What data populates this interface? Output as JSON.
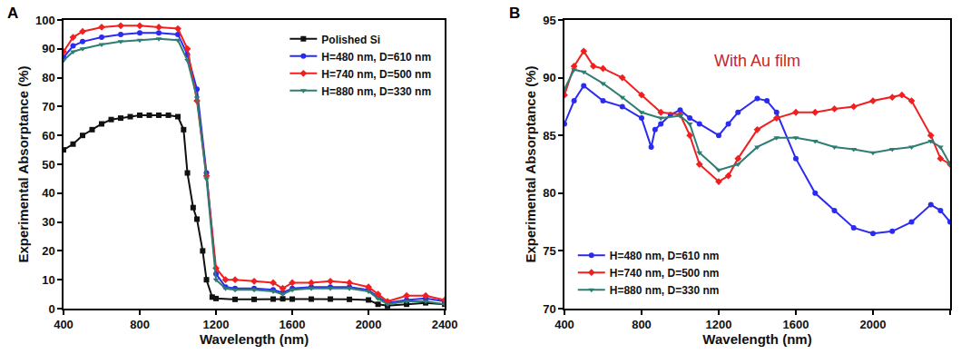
{
  "chart_data": [
    {
      "type": "line",
      "title": "A",
      "x_label": "Wavelength (nm)",
      "y_label": "Experimental Absorptance (%)",
      "xlim": [
        400,
        2400
      ],
      "xticks": [
        400,
        800,
        1200,
        1600,
        2000,
        2400
      ],
      "ylim": [
        0,
        100
      ],
      "yticks": [
        0,
        10,
        20,
        30,
        40,
        50,
        60,
        70,
        80,
        90,
        100
      ],
      "grid": false,
      "legend": "upper right",
      "series": [
        {
          "name": "Polished Si",
          "color": "#111111",
          "marker": "square",
          "x": [
            400,
            450,
            500,
            550,
            600,
            650,
            700,
            750,
            800,
            850,
            900,
            950,
            1000,
            1030,
            1050,
            1080,
            1100,
            1130,
            1150,
            1180,
            1200,
            1300,
            1400,
            1500,
            1550,
            1600,
            1700,
            1800,
            1900,
            2000,
            2050,
            2100,
            2200,
            2300,
            2400
          ],
          "values": [
            55,
            57,
            60,
            62,
            64,
            65.5,
            66,
            66.5,
            67,
            67,
            67,
            67,
            66.5,
            62,
            47,
            35,
            31,
            20,
            10,
            4,
            3.5,
            3.2,
            3.2,
            3.3,
            3.4,
            3.3,
            3.3,
            3.3,
            3.2,
            3,
            1.5,
            1,
            1.5,
            2,
            1.5
          ]
        },
        {
          "name": "H=480 nm, D=610 nm",
          "color": "#2b2bf0",
          "marker": "circle",
          "x": [
            400,
            450,
            500,
            600,
            700,
            800,
            900,
            1000,
            1050,
            1100,
            1150,
            1200,
            1250,
            1300,
            1400,
            1500,
            1550,
            1600,
            1700,
            1800,
            1900,
            2000,
            2050,
            2100,
            2200,
            2300,
            2400
          ],
          "values": [
            87,
            91,
            92.5,
            94,
            95,
            95.5,
            95.5,
            95,
            88,
            76,
            47,
            12,
            7.5,
            7,
            7,
            6.5,
            5.5,
            7,
            7.5,
            7.5,
            7.5,
            6.5,
            4,
            2,
            3,
            3.5,
            2.5
          ]
        },
        {
          "name": "H=740 nm, D=500 nm",
          "color": "#f02020",
          "marker": "diamond",
          "x": [
            400,
            450,
            500,
            600,
            700,
            800,
            900,
            1000,
            1050,
            1100,
            1150,
            1200,
            1250,
            1300,
            1400,
            1500,
            1550,
            1600,
            1700,
            1800,
            1900,
            2000,
            2050,
            2100,
            2200,
            2300,
            2400
          ],
          "values": [
            89,
            94,
            96,
            97.5,
            98,
            98,
            97.5,
            97,
            90,
            72,
            46,
            14,
            10,
            10,
            9.5,
            9,
            7,
            9,
            9,
            9.5,
            9,
            7.5,
            5,
            2.5,
            4.5,
            4.5,
            3
          ]
        },
        {
          "name": "H=880 nm, D=330 nm",
          "color": "#2e7d73",
          "marker": "triangle-down",
          "x": [
            400,
            450,
            500,
            600,
            700,
            800,
            900,
            1000,
            1050,
            1100,
            1150,
            1200,
            1250,
            1300,
            1400,
            1500,
            1550,
            1600,
            1700,
            1800,
            1900,
            2000,
            2050,
            2100,
            2200,
            2300,
            2400
          ],
          "values": [
            86,
            89,
            90,
            91.5,
            92.5,
            93,
            93.5,
            93,
            86,
            73,
            45,
            10,
            7,
            6.5,
            6.5,
            6,
            5,
            6.5,
            7,
            7,
            7,
            6,
            3.5,
            1.5,
            2.5,
            2.5,
            1.5
          ]
        }
      ]
    },
    {
      "type": "line",
      "title": "B",
      "x_label": "Wavelength (nm)",
      "y_label": "Experimental Absorptance (%)",
      "xlim": [
        400,
        2400
      ],
      "xticks": [
        400,
        800,
        1200,
        1600,
        2000,
        2400
      ],
      "ylim": [
        70,
        95
      ],
      "yticks": [
        70,
        75,
        80,
        85,
        90,
        95
      ],
      "grid": false,
      "legend": "lower left",
      "annotations": [
        {
          "text": "With Au film",
          "x": 1400,
          "y": 91.5,
          "color": "#c0282d"
        }
      ],
      "series": [
        {
          "name": "H=480 nm, D=610 nm",
          "color": "#2b2bf0",
          "marker": "circle",
          "x": [
            400,
            450,
            500,
            600,
            700,
            800,
            850,
            870,
            900,
            950,
            1000,
            1050,
            1100,
            1200,
            1250,
            1300,
            1400,
            1450,
            1500,
            1600,
            1700,
            1800,
            1900,
            2000,
            2100,
            2200,
            2300,
            2350,
            2400
          ],
          "values": [
            86,
            88,
            89.3,
            88,
            87.5,
            86.5,
            84,
            85.5,
            86,
            86.8,
            87.2,
            86.5,
            86,
            85,
            86,
            87,
            88.2,
            88,
            87,
            83,
            80,
            78.5,
            77,
            76.5,
            76.7,
            77.5,
            79,
            78.5,
            77.5
          ]
        },
        {
          "name": "H=740 nm, D=500 nm",
          "color": "#f02020",
          "marker": "diamond",
          "x": [
            400,
            450,
            500,
            550,
            600,
            700,
            800,
            900,
            1000,
            1050,
            1100,
            1200,
            1250,
            1300,
            1400,
            1500,
            1600,
            1700,
            1800,
            1900,
            2000,
            2100,
            2150,
            2200,
            2300,
            2350,
            2400
          ],
          "values": [
            88.5,
            91,
            92.3,
            91,
            90.8,
            90,
            88.5,
            87,
            86.8,
            85,
            82.5,
            81,
            81.5,
            83,
            85.5,
            86.5,
            87,
            87,
            87.3,
            87.5,
            88,
            88.3,
            88.5,
            88,
            85,
            83,
            82.5
          ]
        },
        {
          "name": "H=880 nm, D=330 nm",
          "color": "#2e7d73",
          "marker": "triangle-down",
          "x": [
            400,
            450,
            500,
            600,
            700,
            800,
            900,
            1000,
            1050,
            1100,
            1200,
            1300,
            1400,
            1500,
            1600,
            1700,
            1800,
            1900,
            2000,
            2100,
            2200,
            2300,
            2350,
            2400
          ],
          "values": [
            89,
            90.7,
            90.5,
            89.5,
            88.3,
            87,
            86.5,
            86.7,
            86,
            83.5,
            82,
            82.5,
            84,
            84.8,
            84.8,
            84.5,
            84,
            83.8,
            83.5,
            83.8,
            84,
            84.5,
            84,
            82.5
          ]
        }
      ]
    }
  ]
}
